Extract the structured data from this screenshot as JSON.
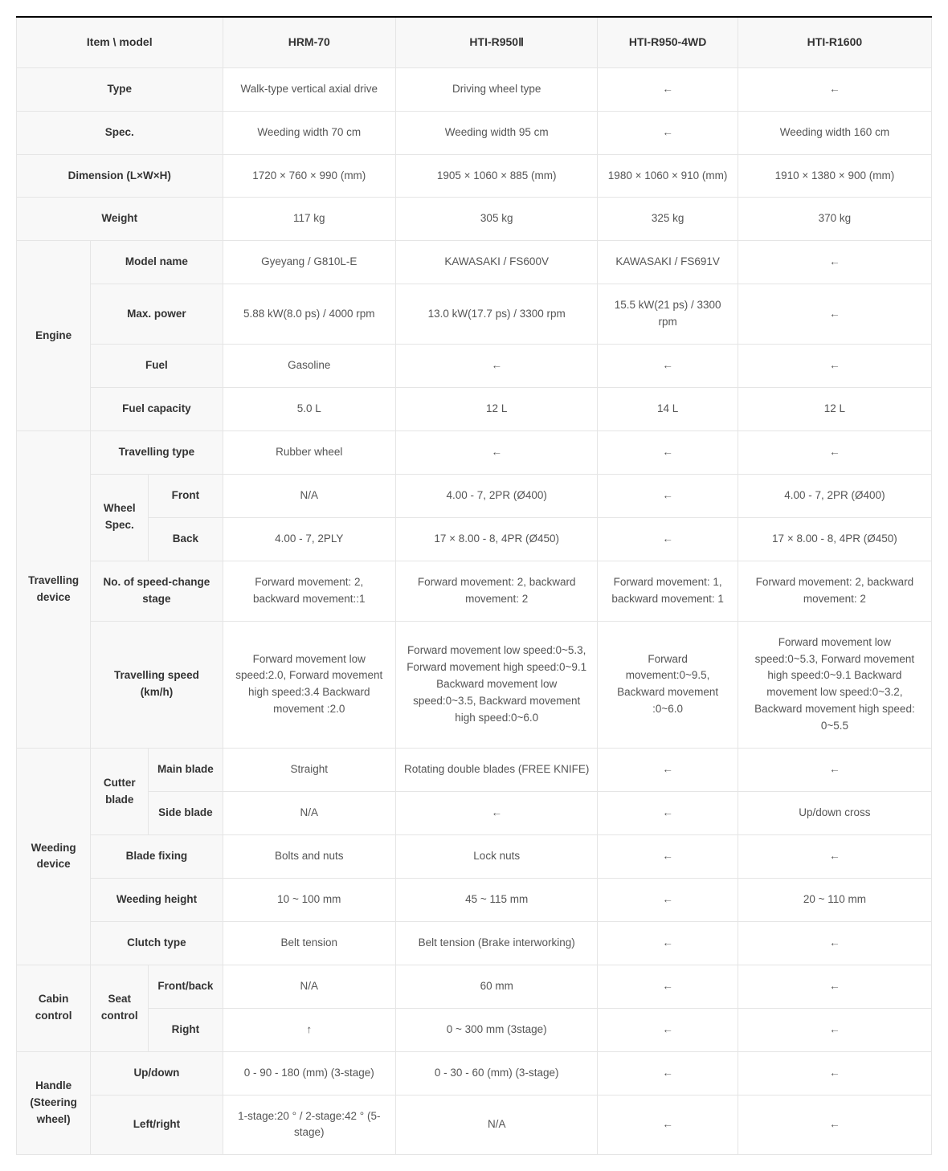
{
  "header": {
    "item": "Item  \\  model",
    "models": [
      "HRM-70",
      "HTI-R950Ⅱ",
      "HTI-R950-4WD",
      "HTI-R1600"
    ]
  },
  "rows": {
    "type": {
      "label": "Type",
      "v": [
        "Walk-type vertical axial drive",
        "Driving wheel type",
        "←",
        "←"
      ]
    },
    "spec": {
      "label": "Spec.",
      "v": [
        "Weeding width 70 cm",
        "Weeding width 95 cm",
        "←",
        "Weeding width 160 cm"
      ]
    },
    "dimension": {
      "label": "Dimension (L×W×H)",
      "v": [
        "1720 × 760 × 990 (mm)",
        "1905 × 1060 × 885 (mm)",
        "1980 × 1060 × 910 (mm)",
        "1910 × 1380 × 900 (mm)"
      ]
    },
    "weight": {
      "label": "Weight",
      "v": [
        "117 kg",
        "305 kg",
        "325 kg",
        "370 kg"
      ]
    },
    "engine": {
      "label": "Engine"
    },
    "eng_model": {
      "label": "Model name",
      "v": [
        "Gyeyang / G810L-E",
        "KAWASAKI / FS600V",
        "KAWASAKI / FS691V",
        "←"
      ]
    },
    "eng_power": {
      "label": "Max. power",
      "v": [
        "5.88 kW(8.0 ps) / 4000 rpm",
        "13.0 kW(17.7 ps) / 3300 rpm",
        "15.5 kW(21 ps) / 3300 rpm",
        "←"
      ]
    },
    "eng_fuel": {
      "label": "Fuel",
      "v": [
        "Gasoline",
        "←",
        "←",
        "←"
      ]
    },
    "eng_cap": {
      "label": "Fuel capacity",
      "v": [
        "5.0 L",
        "12 L",
        "14 L",
        "12 L"
      ]
    },
    "travel": {
      "label": "Travelling device"
    },
    "trv_type": {
      "label": "Travelling type",
      "v": [
        "Rubber wheel",
        "←",
        "←",
        "←"
      ]
    },
    "wheel": {
      "label": "Wheel Spec."
    },
    "wheel_front": {
      "label": "Front",
      "v": [
        "N/A",
        "4.00 - 7, 2PR (Ø400)",
        "←",
        "4.00 - 7, 2PR (Ø400)"
      ]
    },
    "wheel_back": {
      "label": "Back",
      "v": [
        "4.00 - 7, 2PLY",
        "17 × 8.00 - 8, 4PR (Ø450)",
        "←",
        "17 × 8.00 - 8, 4PR (Ø450)"
      ]
    },
    "trv_stage": {
      "label": "No. of speed-change stage",
      "v": [
        "Forward movement: 2, backward movement::1",
        "Forward movement: 2, backward movement: 2",
        "Forward movement: 1, backward movement: 1",
        "Forward movement: 2, backward movement: 2"
      ]
    },
    "trv_speed": {
      "label": "Travelling speed (km/h)",
      "v": [
        "Forward movement low speed:2.0, Forward movement high speed:3.4 Backward movement :2.0",
        "Forward movement low speed:0~5.3, Forward movement high speed:0~9.1 Backward movement low speed:0~3.5, Backward movement high speed:0~6.0",
        "Forward movement:0~9.5, Backward movement :0~6.0",
        "Forward movement low speed:0~5.3, Forward movement high speed:0~9.1 Backward movement low speed:0~3.2, Backward movement high speed: 0~5.5"
      ]
    },
    "weed": {
      "label": "Weeding device"
    },
    "cutter": {
      "label": "Cutter blade"
    },
    "blade_main": {
      "label": "Main blade",
      "v": [
        "Straight",
        "Rotating double blades (FREE KNIFE)",
        "←",
        "←"
      ]
    },
    "blade_side": {
      "label": "Side blade",
      "v": [
        "N/A",
        "←",
        "←",
        "Up/down cross"
      ]
    },
    "blade_fix": {
      "label": "Blade fixing",
      "v": [
        "Bolts and nuts",
        "Lock nuts",
        "←",
        "←"
      ]
    },
    "weed_height": {
      "label": "Weeding height",
      "v": [
        "10 ~ 100 mm",
        "45 ~ 115 mm",
        "←",
        "20 ~ 110 mm"
      ]
    },
    "clutch": {
      "label": "Clutch type",
      "v": [
        "Belt tension",
        "Belt tension (Brake interworking)",
        "←",
        "←"
      ]
    },
    "cabin": {
      "label": "Cabin control"
    },
    "seat": {
      "label": "Seat control"
    },
    "seat_fb": {
      "label": "Front/back",
      "v": [
        "N/A",
        "60 mm",
        "←",
        "←"
      ]
    },
    "seat_right": {
      "label": "Right",
      "v": [
        "↑",
        "0 ~ 300 mm (3stage)",
        "←",
        "←"
      ]
    },
    "handle": {
      "label": "Handle (Steering wheel)"
    },
    "hdl_ud": {
      "label": "Up/down",
      "v": [
        "0 - 90 - 180 (mm) (3-stage)",
        "0 - 30 - 60 (mm) (3-stage)",
        "←",
        "←"
      ]
    },
    "hdl_lr": {
      "label": "Left/right",
      "v": [
        "1-stage:20 ° / 2-stage:42 ° (5-stage)",
        "N/A",
        "←",
        "←"
      ]
    }
  }
}
